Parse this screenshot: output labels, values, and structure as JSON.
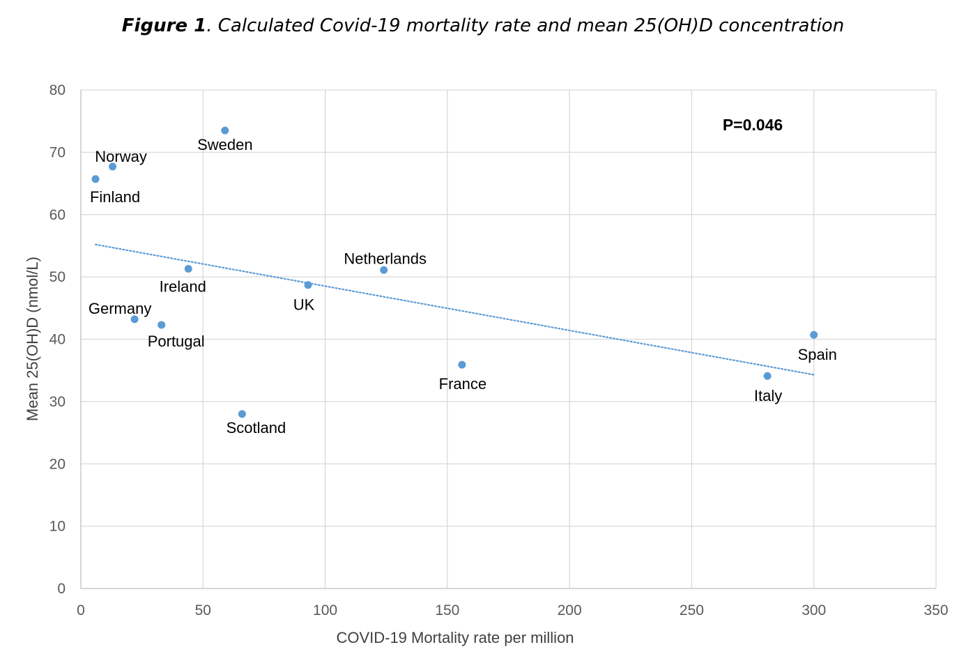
{
  "figure": {
    "label": "Figure 1",
    "caption": ". Calculated Covid-19 mortality rate and mean 25(OH)D concentration"
  },
  "chart_data": {
    "type": "scatter",
    "xlabel": "COVID-19 Mortality rate per million",
    "ylabel": "Mean 25(OH)D (nmol/L)",
    "xlim": [
      0,
      350
    ],
    "ylim": [
      0,
      80
    ],
    "xticks": [
      0,
      50,
      100,
      150,
      200,
      250,
      300,
      350
    ],
    "yticks": [
      0,
      10,
      20,
      30,
      40,
      50,
      60,
      70,
      80
    ],
    "grid": true,
    "marker_color": "#5b9bd5",
    "trendline": {
      "style": "dotted",
      "color": "#5b9bd5",
      "from": {
        "x": 6,
        "y": 55.2
      },
      "to": {
        "x": 300,
        "y": 34.3
      }
    },
    "annotation": "P=0.046",
    "points": [
      {
        "name": "Sweden",
        "x": 59,
        "y": 73.5
      },
      {
        "name": "Norway",
        "x": 13,
        "y": 67.7
      },
      {
        "name": "Finland",
        "x": 6,
        "y": 65.7
      },
      {
        "name": "Netherlands",
        "x": 124,
        "y": 51.1
      },
      {
        "name": "Ireland",
        "x": 44,
        "y": 51.3
      },
      {
        "name": "UK",
        "x": 93,
        "y": 48.7
      },
      {
        "name": "Germany",
        "x": 22,
        "y": 43.2
      },
      {
        "name": "Portugal",
        "x": 33,
        "y": 42.3
      },
      {
        "name": "Spain",
        "x": 300,
        "y": 40.7
      },
      {
        "name": "France",
        "x": 156,
        "y": 35.9
      },
      {
        "name": "Italy",
        "x": 281,
        "y": 34.1
      },
      {
        "name": "Scotland",
        "x": 66,
        "y": 28
      }
    ]
  }
}
